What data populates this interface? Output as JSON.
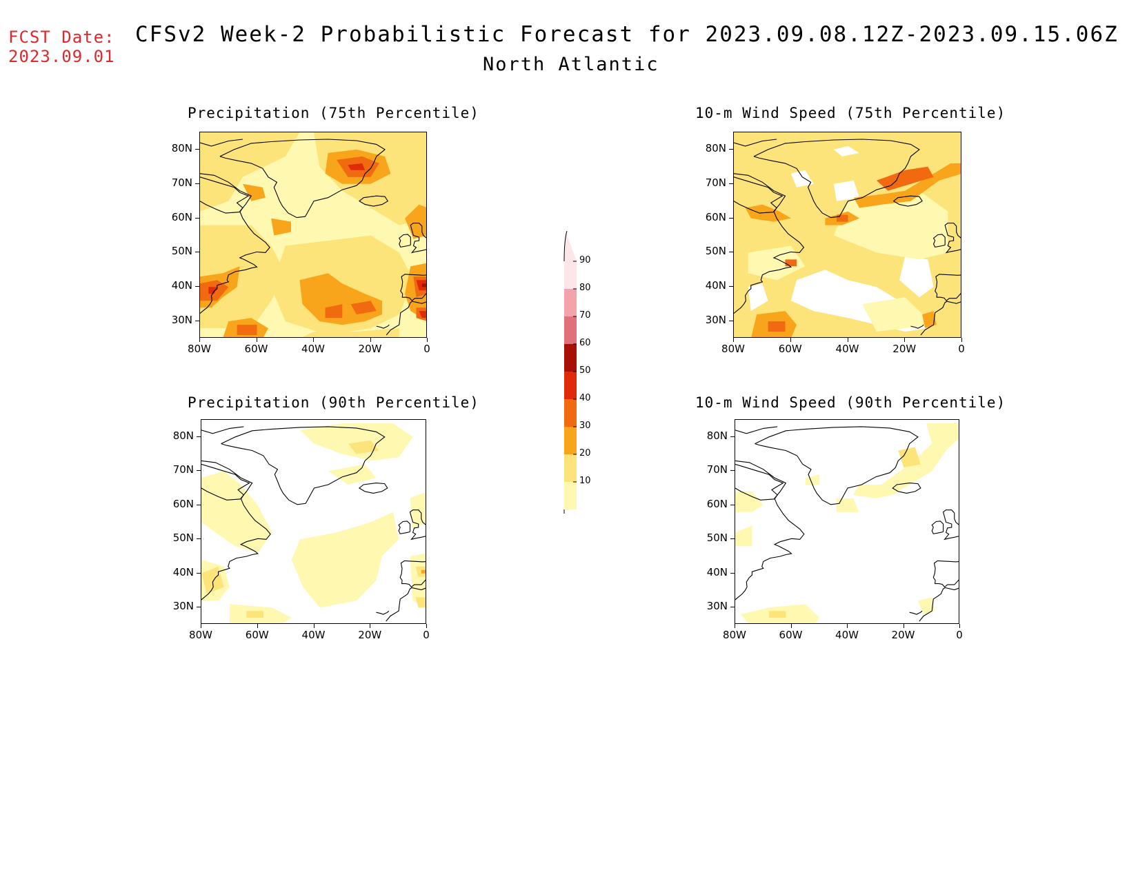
{
  "header": {
    "fcst_label": "FCST Date:",
    "fcst_date": "2023.09.01",
    "title": "CFSv2 Week-2 Probabilistic Forecast for 2023.09.08.12Z-2023.09.15.06Z",
    "region": "North Atlantic"
  },
  "panels": [
    {
      "id": "precip-75",
      "title": "Precipitation (75th Percentile)"
    },
    {
      "id": "wind-75",
      "title": "10-m Wind Speed (75th Percentile)"
    },
    {
      "id": "precip-90",
      "title": "Precipitation (90th Percentile)"
    },
    {
      "id": "wind-90",
      "title": "10-m Wind Speed (90th Percentile)"
    }
  ],
  "axes": {
    "lat_labels": [
      "80N",
      "70N",
      "60N",
      "50N",
      "40N",
      "30N"
    ],
    "lon_labels": [
      "80W",
      "60W",
      "40W",
      "20W",
      "0"
    ]
  },
  "colorbar": {
    "labels": [
      "90",
      "80",
      "70",
      "60",
      "50",
      "40",
      "30",
      "20",
      "10"
    ],
    "colors": {
      "10-20": "#fff8b0",
      "20-30": "#fce47a",
      "30-40": "#f9a51b",
      "40-50": "#f26a10",
      "50-60": "#e02a0a",
      "60-70": "#a81006",
      "70-80": "#e0707a",
      "80-90": "#f4a3aa",
      "90-100": "#fce6e8"
    }
  }
}
